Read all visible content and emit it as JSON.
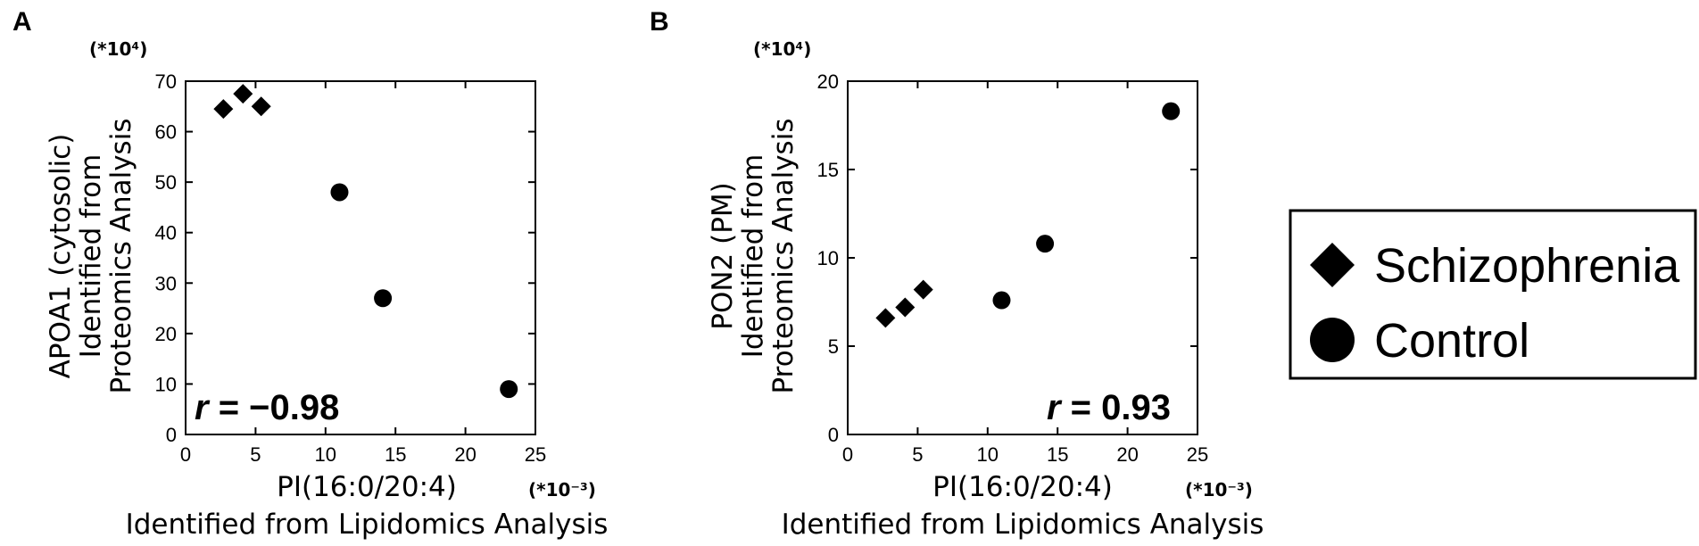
{
  "legend": {
    "schizophrenia_label": "Schizophrenia",
    "control_label": "Control"
  },
  "chart_data": [
    {
      "type": "scatter",
      "panel_label": "A",
      "ylabel_lines": [
        "APOA1 (cytosolic)",
        "Identified from",
        "Proteomics Analysis"
      ],
      "y_multiplier": "(*10⁴)",
      "xlabel_lines": [
        "PI(16:0/20:4)",
        "Identified from Lipidomics Analysis"
      ],
      "x_multiplier": "(*10⁻³)",
      "xlim": [
        0,
        25
      ],
      "ylim": [
        0,
        70
      ],
      "xticks": [
        0,
        5,
        10,
        15,
        20,
        25
      ],
      "yticks": [
        0,
        10,
        20,
        30,
        40,
        50,
        60,
        70
      ],
      "correlation": {
        "prefix": "r",
        "value": " = −0.98",
        "placement": "bottom-left"
      },
      "series": [
        {
          "name": "Schizophrenia",
          "marker": "diamond",
          "points": [
            [
              2.7,
              64.5
            ],
            [
              4.1,
              67.5
            ],
            [
              5.4,
              65.0
            ]
          ]
        },
        {
          "name": "Control",
          "marker": "circle",
          "points": [
            [
              11.0,
              48.0
            ],
            [
              14.1,
              27.0
            ],
            [
              23.1,
              9.0
            ]
          ]
        }
      ]
    },
    {
      "type": "scatter",
      "panel_label": "B",
      "ylabel_lines": [
        "PON2 (PM)",
        "Identified from",
        "Proteomics Analysis"
      ],
      "y_multiplier": "(*10⁴)",
      "xlabel_lines": [
        "PI(16:0/20:4)",
        "Identified from Lipidomics Analysis"
      ],
      "x_multiplier": "(*10⁻³)",
      "xlim": [
        0,
        25
      ],
      "ylim": [
        0,
        20
      ],
      "xticks": [
        0,
        5,
        10,
        15,
        20,
        25
      ],
      "yticks": [
        0,
        5,
        10,
        15,
        20
      ],
      "correlation": {
        "prefix": "r",
        "value": " = 0.93",
        "placement": "bottom-right"
      },
      "series": [
        {
          "name": "Schizophrenia",
          "marker": "diamond",
          "points": [
            [
              2.7,
              6.6
            ],
            [
              4.1,
              7.2
            ],
            [
              5.4,
              8.2
            ]
          ]
        },
        {
          "name": "Control",
          "marker": "circle",
          "points": [
            [
              11.0,
              7.6
            ],
            [
              14.1,
              10.8
            ],
            [
              23.1,
              18.3
            ]
          ]
        }
      ]
    }
  ]
}
